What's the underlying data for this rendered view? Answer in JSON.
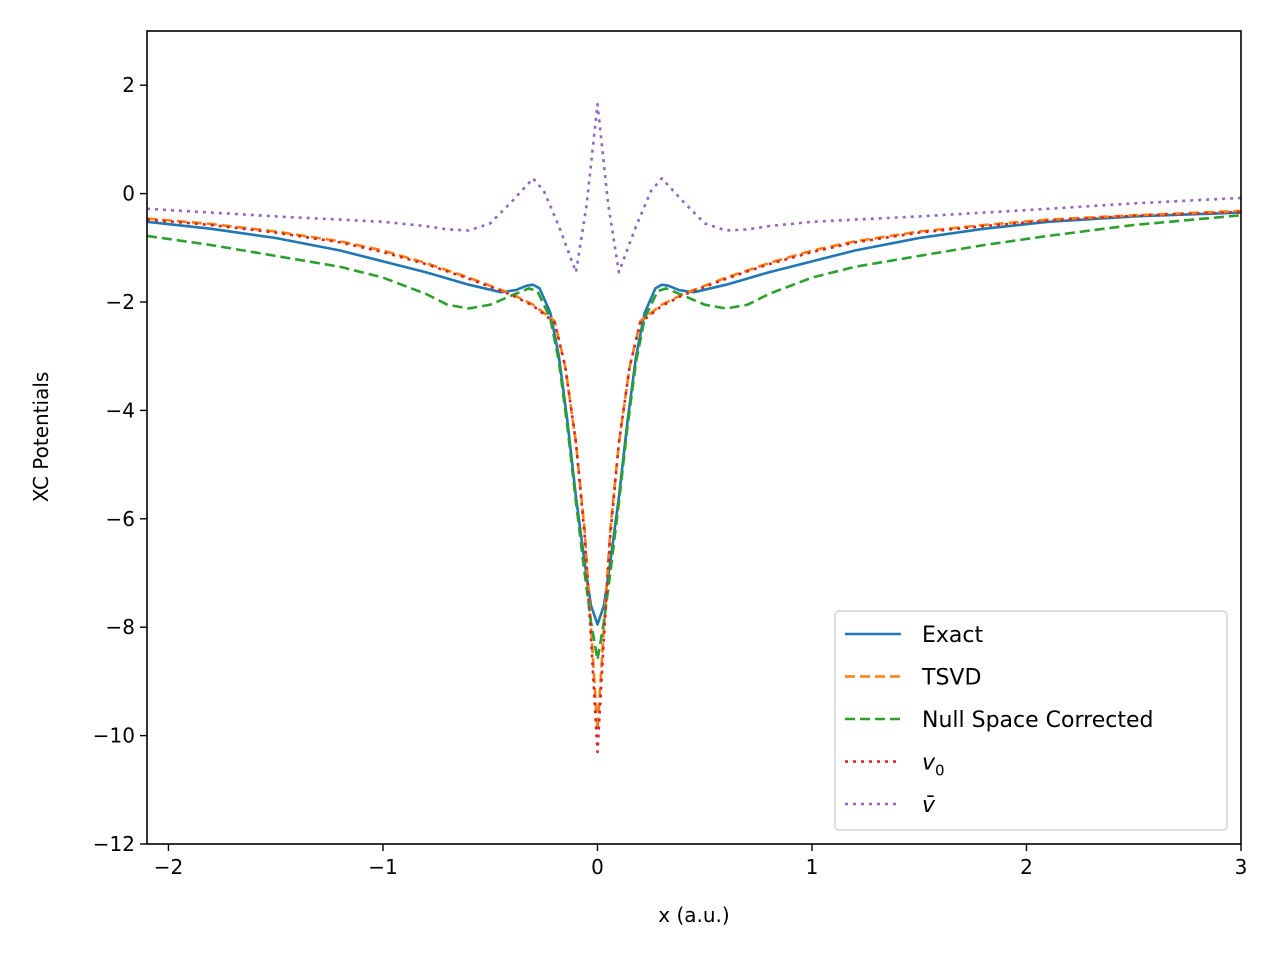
{
  "chart_data": {
    "type": "line",
    "title": "",
    "xlabel": "x (a.u.)",
    "ylabel": "XC Potentials",
    "xlim": [
      -2.1,
      3
    ],
    "ylim": [
      -12,
      3
    ],
    "xticks": [
      -2,
      -1,
      0,
      1,
      2,
      3
    ],
    "xtick_labels": [
      "−2",
      "−1",
      "0",
      "1",
      "2",
      "3"
    ],
    "yticks": [
      2,
      0,
      -2,
      -4,
      -6,
      -8,
      -10,
      -12
    ],
    "ytick_labels": [
      "2",
      "0",
      "−2",
      "−4",
      "−6",
      "−8",
      "−10",
      "−12"
    ],
    "grid": false,
    "legend_position": "lower-right",
    "series": [
      {
        "name": "Exact",
        "color": "#1f77b4",
        "style": "solid",
        "points": [
          [
            -2.1,
            -0.52
          ],
          [
            -1.8,
            -0.65
          ],
          [
            -1.5,
            -0.82
          ],
          [
            -1.2,
            -1.05
          ],
          [
            -1.0,
            -1.25
          ],
          [
            -0.8,
            -1.45
          ],
          [
            -0.6,
            -1.68
          ],
          [
            -0.45,
            -1.82
          ],
          [
            -0.38,
            -1.78
          ],
          [
            -0.33,
            -1.7
          ],
          [
            -0.3,
            -1.68
          ],
          [
            -0.27,
            -1.75
          ],
          [
            -0.22,
            -2.2
          ],
          [
            -0.18,
            -3.0
          ],
          [
            -0.14,
            -4.2
          ],
          [
            -0.1,
            -5.6
          ],
          [
            -0.06,
            -6.8
          ],
          [
            -0.03,
            -7.6
          ],
          [
            0.0,
            -7.95
          ],
          [
            0.03,
            -7.6
          ],
          [
            0.06,
            -6.8
          ],
          [
            0.1,
            -5.6
          ],
          [
            0.14,
            -4.2
          ],
          [
            0.18,
            -3.0
          ],
          [
            0.22,
            -2.2
          ],
          [
            0.27,
            -1.75
          ],
          [
            0.3,
            -1.68
          ],
          [
            0.33,
            -1.7
          ],
          [
            0.38,
            -1.78
          ],
          [
            0.45,
            -1.82
          ],
          [
            0.6,
            -1.68
          ],
          [
            0.8,
            -1.45
          ],
          [
            1.0,
            -1.25
          ],
          [
            1.2,
            -1.05
          ],
          [
            1.5,
            -0.82
          ],
          [
            1.8,
            -0.65
          ],
          [
            2.1,
            -0.52
          ],
          [
            2.5,
            -0.42
          ],
          [
            3.0,
            -0.35
          ]
        ]
      },
      {
        "name": "TSVD",
        "color": "#ff7f0e",
        "style": "dashed",
        "points": [
          [
            -2.1,
            -0.46
          ],
          [
            -1.8,
            -0.56
          ],
          [
            -1.5,
            -0.7
          ],
          [
            -1.2,
            -0.88
          ],
          [
            -1.0,
            -1.05
          ],
          [
            -0.8,
            -1.28
          ],
          [
            -0.6,
            -1.55
          ],
          [
            -0.4,
            -1.85
          ],
          [
            -0.3,
            -2.05
          ],
          [
            -0.2,
            -2.35
          ],
          [
            -0.15,
            -3.2
          ],
          [
            -0.1,
            -4.6
          ],
          [
            -0.06,
            -6.2
          ],
          [
            -0.03,
            -8.0
          ],
          [
            0.0,
            -9.9
          ],
          [
            0.03,
            -8.0
          ],
          [
            0.06,
            -6.2
          ],
          [
            0.1,
            -4.6
          ],
          [
            0.15,
            -3.2
          ],
          [
            0.2,
            -2.35
          ],
          [
            0.3,
            -2.05
          ],
          [
            0.4,
            -1.85
          ],
          [
            0.6,
            -1.55
          ],
          [
            0.8,
            -1.28
          ],
          [
            1.0,
            -1.05
          ],
          [
            1.2,
            -0.88
          ],
          [
            1.5,
            -0.7
          ],
          [
            1.8,
            -0.58
          ],
          [
            2.1,
            -0.48
          ],
          [
            2.5,
            -0.4
          ],
          [
            3.0,
            -0.32
          ]
        ]
      },
      {
        "name": "Null Space Corrected",
        "color": "#2ca02c",
        "style": "dashed",
        "points": [
          [
            -2.1,
            -0.78
          ],
          [
            -1.8,
            -0.95
          ],
          [
            -1.5,
            -1.15
          ],
          [
            -1.2,
            -1.35
          ],
          [
            -1.0,
            -1.55
          ],
          [
            -0.8,
            -1.85
          ],
          [
            -0.7,
            -2.05
          ],
          [
            -0.6,
            -2.12
          ],
          [
            -0.5,
            -2.05
          ],
          [
            -0.4,
            -1.88
          ],
          [
            -0.32,
            -1.75
          ],
          [
            -0.28,
            -1.8
          ],
          [
            -0.22,
            -2.3
          ],
          [
            -0.18,
            -3.1
          ],
          [
            -0.14,
            -4.3
          ],
          [
            -0.1,
            -5.7
          ],
          [
            -0.06,
            -7.0
          ],
          [
            -0.03,
            -7.9
          ],
          [
            0.0,
            -8.6
          ],
          [
            0.03,
            -7.9
          ],
          [
            0.06,
            -7.0
          ],
          [
            0.1,
            -5.7
          ],
          [
            0.14,
            -4.3
          ],
          [
            0.18,
            -3.1
          ],
          [
            0.22,
            -2.3
          ],
          [
            0.28,
            -1.8
          ],
          [
            0.32,
            -1.75
          ],
          [
            0.4,
            -1.88
          ],
          [
            0.5,
            -2.05
          ],
          [
            0.6,
            -2.12
          ],
          [
            0.7,
            -2.05
          ],
          [
            0.8,
            -1.85
          ],
          [
            1.0,
            -1.55
          ],
          [
            1.2,
            -1.35
          ],
          [
            1.5,
            -1.15
          ],
          [
            1.8,
            -0.95
          ],
          [
            2.1,
            -0.78
          ],
          [
            2.5,
            -0.58
          ],
          [
            3.0,
            -0.4
          ]
        ]
      },
      {
        "name": "v_0",
        "label_main": "v",
        "label_sub": "0",
        "color": "#d62728",
        "style": "dotted",
        "points": [
          [
            -2.1,
            -0.48
          ],
          [
            -1.8,
            -0.58
          ],
          [
            -1.5,
            -0.72
          ],
          [
            -1.2,
            -0.9
          ],
          [
            -1.0,
            -1.08
          ],
          [
            -0.8,
            -1.3
          ],
          [
            -0.6,
            -1.57
          ],
          [
            -0.4,
            -1.87
          ],
          [
            -0.3,
            -2.07
          ],
          [
            -0.2,
            -2.38
          ],
          [
            -0.15,
            -3.2
          ],
          [
            -0.1,
            -4.6
          ],
          [
            -0.06,
            -6.3
          ],
          [
            -0.03,
            -8.2
          ],
          [
            0.0,
            -10.3
          ],
          [
            0.03,
            -8.2
          ],
          [
            0.06,
            -6.3
          ],
          [
            0.1,
            -4.6
          ],
          [
            0.15,
            -3.2
          ],
          [
            0.2,
            -2.38
          ],
          [
            0.3,
            -2.07
          ],
          [
            0.4,
            -1.87
          ],
          [
            0.6,
            -1.57
          ],
          [
            0.8,
            -1.3
          ],
          [
            1.0,
            -1.08
          ],
          [
            1.2,
            -0.9
          ],
          [
            1.5,
            -0.72
          ],
          [
            1.8,
            -0.6
          ],
          [
            2.1,
            -0.5
          ],
          [
            2.5,
            -0.41
          ],
          [
            3.0,
            -0.34
          ]
        ]
      },
      {
        "name": "v_bar",
        "label_main": "v̄",
        "color": "#9467bd",
        "style": "dotted",
        "points": [
          [
            -2.1,
            -0.28
          ],
          [
            -1.8,
            -0.35
          ],
          [
            -1.5,
            -0.42
          ],
          [
            -1.2,
            -0.48
          ],
          [
            -1.0,
            -0.52
          ],
          [
            -0.8,
            -0.6
          ],
          [
            -0.7,
            -0.66
          ],
          [
            -0.6,
            -0.68
          ],
          [
            -0.5,
            -0.55
          ],
          [
            -0.4,
            -0.15
          ],
          [
            -0.3,
            0.28
          ],
          [
            -0.25,
            0.05
          ],
          [
            -0.18,
            -0.6
          ],
          [
            -0.1,
            -1.45
          ],
          [
            -0.05,
            -0.2
          ],
          [
            0.0,
            1.65
          ],
          [
            0.05,
            -0.2
          ],
          [
            0.1,
            -1.45
          ],
          [
            0.18,
            -0.6
          ],
          [
            0.25,
            0.05
          ],
          [
            0.3,
            0.28
          ],
          [
            0.4,
            -0.15
          ],
          [
            0.5,
            -0.55
          ],
          [
            0.6,
            -0.68
          ],
          [
            0.7,
            -0.66
          ],
          [
            0.8,
            -0.6
          ],
          [
            1.0,
            -0.52
          ],
          [
            1.2,
            -0.48
          ],
          [
            1.5,
            -0.42
          ],
          [
            1.8,
            -0.35
          ],
          [
            2.1,
            -0.28
          ],
          [
            2.5,
            -0.18
          ],
          [
            3.0,
            -0.08
          ]
        ]
      }
    ]
  }
}
